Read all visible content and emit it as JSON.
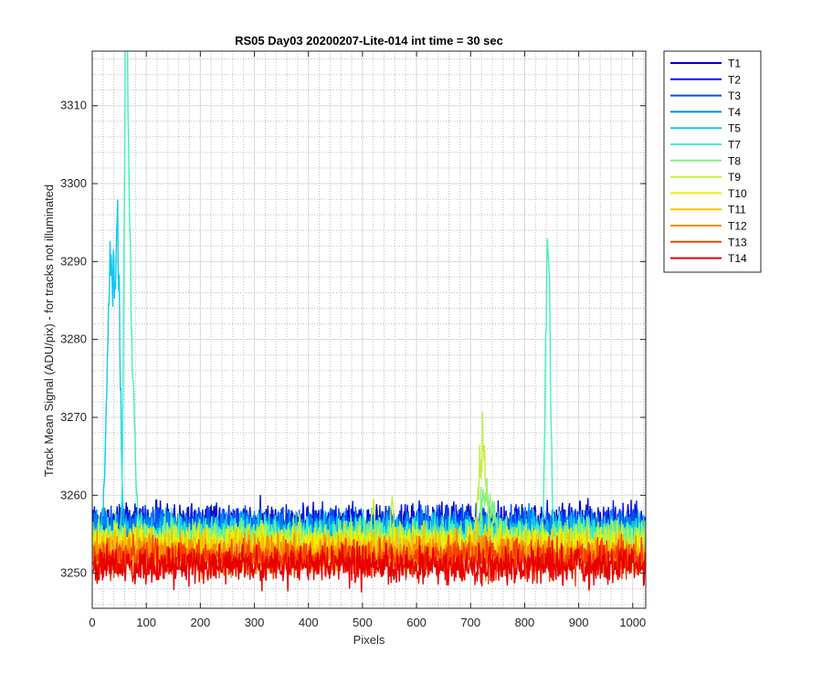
{
  "chart_data": {
    "type": "line",
    "title": "RS05 Day03 20200207-Lite-014 int time = 30 sec",
    "xlabel": "Pixels",
    "ylabel": "Track Mean Signal (ADU/pix) - for tracks not illuminated",
    "xlim": [
      0,
      1024
    ],
    "ylim": [
      3245.5,
      3317
    ],
    "x_ticks": [
      0,
      100,
      200,
      300,
      400,
      500,
      600,
      700,
      800,
      900,
      1000
    ],
    "y_ticks": [
      3250,
      3260,
      3270,
      3280,
      3290,
      3300,
      3310
    ],
    "grid": "major and minor (dotted)",
    "legend_position": "outside top-right",
    "series": [
      {
        "name": "T1",
        "color": "#0000c8",
        "baseline": 3256.5,
        "amplitude": 2.2,
        "features": []
      },
      {
        "name": "T2",
        "color": "#0018e6",
        "baseline": 3256.3,
        "amplitude": 2.2,
        "features": []
      },
      {
        "name": "T3",
        "color": "#0050f0",
        "baseline": 3256.0,
        "amplitude": 2.2,
        "features": []
      },
      {
        "name": "T4",
        "color": "#0088f8",
        "baseline": 3255.6,
        "amplitude": 2.2,
        "features": []
      },
      {
        "name": "T5",
        "color": "#10c8f0",
        "baseline": 3255.2,
        "amplitude": 2.2,
        "features": [
          {
            "x": 35,
            "peak": 3294,
            "width": 10
          },
          {
            "x": 48,
            "peak": 3290,
            "width": 6
          }
        ]
      },
      {
        "name": "T7",
        "color": "#40f0c0",
        "baseline": 3254.8,
        "amplitude": 2.2,
        "features": [
          {
            "x": 63,
            "peak": 3317,
            "width": 5
          },
          {
            "x": 70,
            "peak": 3286,
            "width": 10
          },
          {
            "x": 845,
            "peak": 3290,
            "width": 5
          },
          {
            "x": 840,
            "peak": 3276,
            "width": 4
          }
        ]
      },
      {
        "name": "T8",
        "color": "#80f080",
        "baseline": 3254.4,
        "amplitude": 2.2,
        "features": [
          {
            "x": 730,
            "peak": 3261,
            "width": 15
          }
        ]
      },
      {
        "name": "T9",
        "color": "#c0f040",
        "baseline": 3254.0,
        "amplitude": 2.2,
        "features": [
          {
            "x": 722,
            "peak": 3268.5,
            "width": 9
          },
          {
            "x": 520,
            "peak": 3261,
            "width": 3
          },
          {
            "x": 555,
            "peak": 3261.5,
            "width": 3
          }
        ]
      },
      {
        "name": "T10",
        "color": "#f0f000",
        "baseline": 3253.5,
        "amplitude": 2.2,
        "features": []
      },
      {
        "name": "T11",
        "color": "#f8c000",
        "baseline": 3253.0,
        "amplitude": 2.2,
        "features": []
      },
      {
        "name": "T12",
        "color": "#f88c00",
        "baseline": 3252.4,
        "amplitude": 2.2,
        "features": []
      },
      {
        "name": "T13",
        "color": "#f84000",
        "baseline": 3251.8,
        "amplitude": 2.2,
        "features": []
      },
      {
        "name": "T14",
        "color": "#e80000",
        "baseline": 3251.0,
        "amplitude": 2.3,
        "features": []
      }
    ]
  }
}
